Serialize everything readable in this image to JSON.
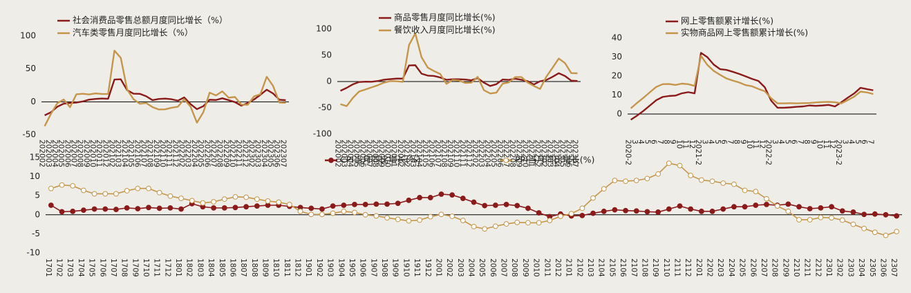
{
  "chart_data": [
    {
      "type": "line",
      "categories": [
        "202002",
        "202003",
        "202004",
        "202005",
        "202006",
        "202007",
        "202008",
        "202009",
        "202010",
        "202011",
        "202012",
        "202102",
        "202103",
        "202104",
        "202105",
        "202106",
        "202107",
        "202108",
        "202109",
        "202110",
        "202111",
        "202112",
        "202202",
        "202203",
        "202204",
        "202205",
        "202206",
        "202207",
        "202208",
        "202209",
        "202210",
        "202211",
        "202212",
        "202302",
        "202303",
        "202304",
        "202305",
        "202306",
        "202307"
      ],
      "series": [
        {
          "name": "社会消费品零售总额月度同比增长（%）",
          "color": "#8b1a1a",
          "values": [
            -20.5,
            -15.8,
            -7.5,
            -2.8,
            -1.8,
            -1.1,
            0.5,
            3.3,
            4.3,
            5.0,
            4.6,
            33.8,
            34.2,
            17.7,
            12.4,
            12.1,
            8.5,
            2.5,
            4.4,
            4.9,
            3.9,
            1.7,
            6.7,
            -3.5,
            -11.1,
            -6.7,
            3.1,
            2.7,
            5.4,
            2.5,
            -0.5,
            -5.9,
            -1.8,
            3.5,
            10.6,
            18.4,
            12.7,
            3.1,
            2.5
          ]
        },
        {
          "name": "汽车类零售月度同比增长（%）",
          "color": "#c5964a",
          "values": [
            -37.0,
            -18.1,
            -2.1,
            3.5,
            -8.2,
            11.4,
            12.2,
            11.2,
            12.8,
            12.0,
            11.8,
            77.6,
            66.8,
            18.6,
            4.0,
            -3.0,
            -1.8,
            -8.0,
            -11.7,
            -11.4,
            -9.0,
            -7.4,
            3.9,
            -7.5,
            -31.6,
            -16.0,
            13.9,
            9.7,
            15.9,
            6.3,
            7.3,
            -4.2,
            -4.6,
            8.2,
            11.5,
            38.0,
            24.2,
            -1.1,
            -1.5
          ]
        }
      ],
      "ylim": [
        -50,
        100
      ],
      "yticks": [
        -50,
        0,
        50,
        100
      ]
    },
    {
      "type": "line",
      "categories": [
        "202002",
        "202003",
        "202004",
        "202005",
        "202006",
        "202007",
        "202008",
        "202009",
        "202010",
        "202011",
        "202012",
        "202102",
        "202103",
        "202104",
        "202105",
        "202106",
        "202107",
        "202108",
        "202109",
        "202110",
        "202111",
        "202112",
        "202202",
        "202203",
        "202204",
        "202205",
        "202206",
        "202207",
        "202208",
        "202209",
        "202210",
        "202211",
        "202212",
        "202302",
        "202303",
        "202304",
        "202305",
        "202306",
        "202307"
      ],
      "series": [
        {
          "name": "商品零售月度同比增长(%)",
          "color": "#8b1a1a",
          "values": [
            -17.6,
            -12.0,
            -5.3,
            -0.9,
            -0.3,
            -0.4,
            1.0,
            3.6,
            4.6,
            5.6,
            5.6,
            30.7,
            31.1,
            15.0,
            11.3,
            10.6,
            7.7,
            3.3,
            4.4,
            4.3,
            3.9,
            2.4,
            6.5,
            -2.1,
            -8.5,
            -5.0,
            3.9,
            3.2,
            5.3,
            3.4,
            0.7,
            -5.6,
            0.5,
            2.9,
            9.0,
            15.9,
            10.5,
            1.7,
            1.0
          ]
        },
        {
          "name": "餐饮收入月度同比增长(%)",
          "color": "#c5964a",
          "values": [
            -43.1,
            -46.8,
            -31.1,
            -18.9,
            -15.2,
            -11.0,
            -7.0,
            -2.0,
            0.8,
            0.6,
            -0.6,
            69.6,
            91.6,
            46.4,
            26.6,
            20.0,
            14.3,
            -4.5,
            3.1,
            2.0,
            -2.7,
            -2.0,
            8.9,
            -16.4,
            -22.7,
            -21.1,
            -4.0,
            -1.5,
            8.4,
            8.6,
            -1.7,
            -8.4,
            -14.1,
            9.2,
            26.3,
            43.8,
            35.1,
            16.1,
            15.8
          ]
        }
      ],
      "ylim": [
        -100,
        100
      ],
      "yticks": [
        -100,
        -50,
        0,
        50,
        100
      ]
    },
    {
      "type": "line",
      "categories": [
        "2020-2",
        "3",
        "4",
        "5",
        "6",
        "7",
        "8",
        "9",
        "10",
        "11",
        "12",
        "2021-2",
        "3",
        "4",
        "5",
        "6",
        "7",
        "8",
        "9",
        "10",
        "11",
        "12",
        "2022-2",
        "3",
        "4",
        "5",
        "6",
        "7",
        "8",
        "9",
        "10",
        "11",
        "12",
        "2023-2",
        "3",
        "4",
        "5",
        "6",
        "7"
      ],
      "series": [
        {
          "name": "网上零售额累计增长(%)",
          "color": "#8b1a1a",
          "values": [
            -3.0,
            -0.8,
            1.7,
            4.5,
            7.3,
            9.0,
            9.5,
            9.7,
            10.9,
            11.5,
            10.9,
            32.2,
            29.9,
            26.0,
            23.6,
            23.2,
            22.2,
            21.1,
            19.8,
            18.5,
            17.4,
            14.1,
            7.0,
            3.3,
            3.3,
            3.5,
            3.8,
            4.0,
            4.5,
            4.3,
            4.5,
            4.8,
            4.0,
            6.2,
            8.6,
            10.8,
            13.8,
            13.1,
            12.5
          ]
        },
        {
          "name": "实物商品网上零售额累计增长(%)",
          "color": "#c5964a",
          "values": [
            3.0,
            5.9,
            8.6,
            11.5,
            14.3,
            15.7,
            15.8,
            15.3,
            16.0,
            15.7,
            14.8,
            30.6,
            25.8,
            22.7,
            20.6,
            18.7,
            17.6,
            16.6,
            15.2,
            14.6,
            13.2,
            12.0,
            8.3,
            5.6,
            5.6,
            5.7,
            5.6,
            5.7,
            5.8,
            6.1,
            6.3,
            6.4,
            6.2,
            5.6,
            7.3,
            9.1,
            11.8,
            11.4,
            10.5
          ]
        }
      ],
      "ylim": [
        0,
        40
      ],
      "yticks": [
        0,
        10,
        20,
        30,
        40
      ]
    },
    {
      "type": "line",
      "markers": true,
      "categories": [
        "1701",
        "1702",
        "1703",
        "1704",
        "1705",
        "1706",
        "1707",
        "1708",
        "1709",
        "1710",
        "1711",
        "1712",
        "1801",
        "1802",
        "1803",
        "1804",
        "1805",
        "1806",
        "1807",
        "1808",
        "1809",
        "1810",
        "1811",
        "1812",
        "1901",
        "1902",
        "1903",
        "1904",
        "1905",
        "1906",
        "1907",
        "1908",
        "1909",
        "1910",
        "1911",
        "1912",
        "2001",
        "2002",
        "2003",
        "2004",
        "2005",
        "2006",
        "2007",
        "2008",
        "2009",
        "2010",
        "2011",
        "2012",
        "2101",
        "2102",
        "2103",
        "2104",
        "2105",
        "2106",
        "2107",
        "2108",
        "2109",
        "2110",
        "2111",
        "2112",
        "2201",
        "2202",
        "2203",
        "2204",
        "2205",
        "2206",
        "2207",
        "2208",
        "2209",
        "2210",
        "2211",
        "2212",
        "2301",
        "2302",
        "2303",
        "2304",
        "2305",
        "2306",
        "2307"
      ],
      "series": [
        {
          "name": "CPI当月同比增长(%)",
          "color": "#8b1a1a",
          "marker_fill": "#8b1a1a",
          "values": [
            2.5,
            0.8,
            0.9,
            1.2,
            1.5,
            1.5,
            1.4,
            1.8,
            1.6,
            1.9,
            1.7,
            1.8,
            1.5,
            2.9,
            2.1,
            1.8,
            1.8,
            1.9,
            2.1,
            2.3,
            2.5,
            2.5,
            2.2,
            1.9,
            1.7,
            1.5,
            2.3,
            2.5,
            2.7,
            2.7,
            2.8,
            2.8,
            3.0,
            3.8,
            4.5,
            4.5,
            5.4,
            5.2,
            4.3,
            3.3,
            2.4,
            2.5,
            2.7,
            2.4,
            1.7,
            0.5,
            -0.5,
            0.2,
            -0.3,
            -0.2,
            0.4,
            0.9,
            1.3,
            1.1,
            1.0,
            0.8,
            0.7,
            1.5,
            2.3,
            1.5,
            0.9,
            0.9,
            1.5,
            2.1,
            2.1,
            2.5,
            2.7,
            2.5,
            2.8,
            2.1,
            1.6,
            1.8,
            2.1,
            1.0,
            0.7,
            0.1,
            0.2,
            0.0,
            -0.3
          ]
        },
        {
          "name": "PPI当月同比增长(%)",
          "color": "#c5964a",
          "marker_fill": "#ffffff",
          "values": [
            6.9,
            7.8,
            7.6,
            6.4,
            5.5,
            5.5,
            5.5,
            6.3,
            6.9,
            6.9,
            5.8,
            4.9,
            4.3,
            3.7,
            3.1,
            3.4,
            4.1,
            4.7,
            4.6,
            4.1,
            3.6,
            3.3,
            2.7,
            0.9,
            0.1,
            0.1,
            0.4,
            0.9,
            0.6,
            0.0,
            -0.3,
            -0.8,
            -1.2,
            -1.6,
            -1.4,
            -0.5,
            0.1,
            -0.4,
            -1.5,
            -3.1,
            -3.7,
            -3.0,
            -2.4,
            -2.0,
            -2.1,
            -2.1,
            -1.5,
            -0.4,
            0.3,
            1.7,
            4.4,
            6.8,
            9.0,
            8.8,
            9.0,
            9.5,
            10.7,
            13.5,
            12.9,
            10.3,
            9.1,
            8.8,
            8.3,
            8.0,
            6.4,
            6.1,
            4.2,
            2.3,
            0.9,
            -1.3,
            -1.3,
            -0.7,
            -0.8,
            -1.4,
            -2.5,
            -3.6,
            -4.6,
            -5.4,
            -4.4
          ]
        }
      ],
      "ylim": [
        -10,
        15
      ],
      "yticks": [
        -10,
        -5,
        0,
        5,
        10,
        15
      ]
    }
  ]
}
